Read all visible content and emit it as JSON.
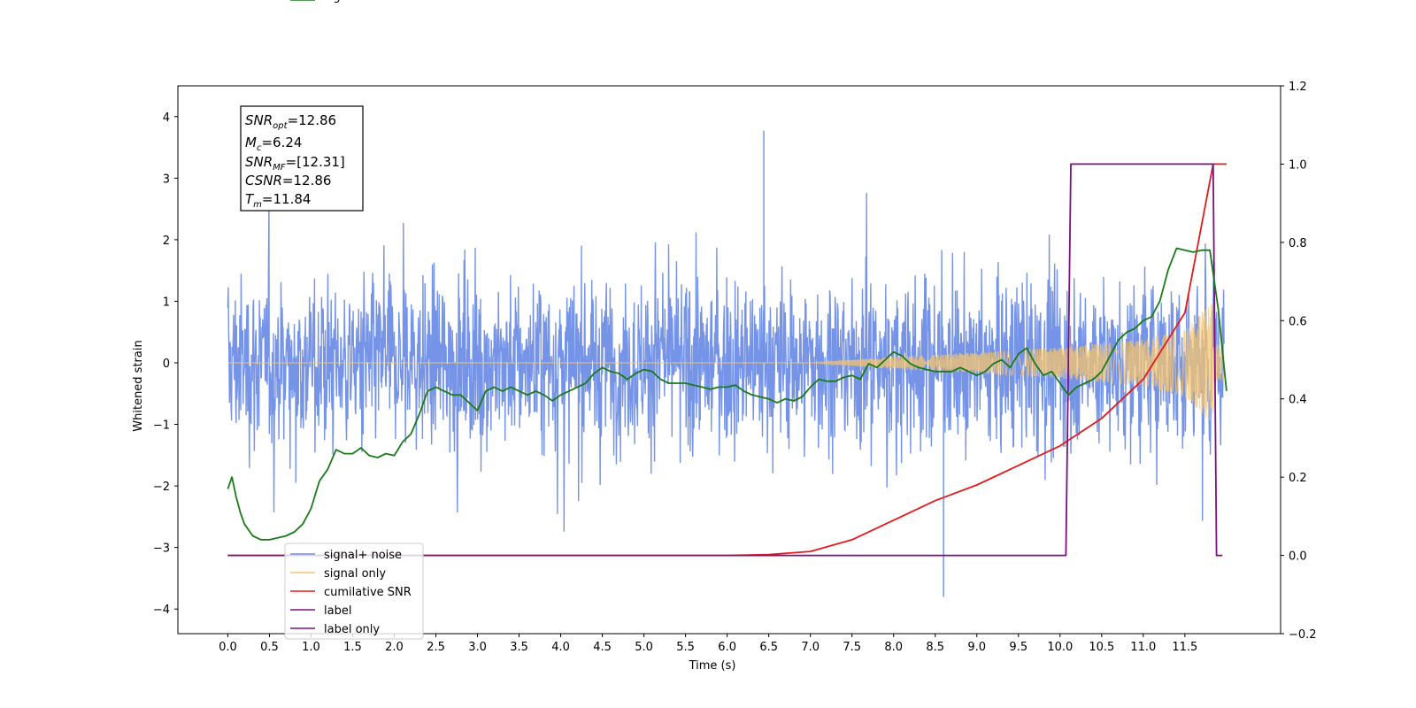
{
  "chart_data": {
    "type": "line",
    "xlabel": "Time (s)",
    "ylabel": "Whitened strain",
    "xlim": [
      -0.6,
      12.65
    ],
    "ylim": [
      -4.4,
      4.5
    ],
    "y2lim": [
      -0.2,
      1.2
    ],
    "x_ticks": [
      "0.0",
      "0.5",
      "1.0",
      "1.5",
      "2.0",
      "2.5",
      "3.0",
      "3.5",
      "4.0",
      "4.5",
      "5.0",
      "5.5",
      "6.0",
      "6.5",
      "7.0",
      "7.5",
      "8.0",
      "8.5",
      "9.0",
      "9.5",
      "10.0",
      "10.5",
      "11.0",
      "11.5"
    ],
    "y_ticks": [
      "−4",
      "−3",
      "−2",
      "−1",
      "0",
      "1",
      "2",
      "3",
      "4"
    ],
    "y2_ticks": [
      "−0.2",
      "0.0",
      "0.2",
      "0.4",
      "0.6",
      "0.8",
      "1.0",
      "1.2"
    ],
    "grid": false,
    "legend_position": "lower-left",
    "annotation_lines": [
      {
        "pre": "SNR",
        "sub": "opt",
        "post": "=12.86"
      },
      {
        "pre": "M",
        "sub": "c",
        "post": "=6.24"
      },
      {
        "pre": "SNR",
        "sub": "MF",
        "post": "=[12.31]"
      },
      {
        "pre": "CSNR",
        "sub": "",
        "post": "=12.86"
      },
      {
        "pre": "T",
        "sub": "m",
        "post": "=11.84"
      }
    ],
    "series": [
      {
        "name": "signal+ noise",
        "color": "#6f8ee6",
        "axis": "left",
        "style": "noise",
        "noise_range": [
          -2.3,
          2.4
        ],
        "extremes": [
          3.77,
          -3.8
        ]
      },
      {
        "name": "signal only",
        "color": "#f5c46e",
        "axis": "left",
        "style": "chirp",
        "amplitude_envelope": {
          "x": [
            7.0,
            8.0,
            9.0,
            10.0,
            11.0,
            11.5,
            11.84
          ],
          "y": [
            0.0,
            0.1,
            0.17,
            0.25,
            0.38,
            0.55,
            1.0
          ]
        }
      },
      {
        "name": "cumilative SNR",
        "color": "#e41a1c",
        "axis": "right",
        "x": [
          0.0,
          6.0,
          6.5,
          7.0,
          7.5,
          8.0,
          8.5,
          9.0,
          9.5,
          10.0,
          10.5,
          11.0,
          11.5,
          11.84,
          11.85,
          12.0
        ],
        "y": [
          0.0,
          0.0,
          0.002,
          0.01,
          0.04,
          0.09,
          0.14,
          0.18,
          0.23,
          0.28,
          0.35,
          0.45,
          0.62,
          1.0,
          1.0,
          1.0
        ]
      },
      {
        "name": "label",
        "color": "#7b1080",
        "axis": "right",
        "x": [
          0.0,
          10.07,
          10.13,
          11.84,
          11.88,
          11.95
        ],
        "y": [
          0.0,
          0.0,
          1.0,
          1.0,
          0.0,
          0.0
        ]
      },
      {
        "name": "label only",
        "color": "#7b1080",
        "axis": "right",
        "hidden": true,
        "x": [],
        "y": []
      },
      {
        "name": "signal statistics",
        "color": "#1a7a1a",
        "axis": "right",
        "x": [
          0.0,
          0.05,
          0.1,
          0.15,
          0.2,
          0.3,
          0.4,
          0.5,
          0.6,
          0.7,
          0.8,
          0.9,
          1.0,
          1.1,
          1.2,
          1.3,
          1.4,
          1.5,
          1.6,
          1.7,
          1.8,
          1.9,
          2.0,
          2.1,
          2.2,
          2.3,
          2.4,
          2.5,
          2.6,
          2.7,
          2.8,
          2.9,
          3.0,
          3.1,
          3.2,
          3.3,
          3.4,
          3.5,
          3.6,
          3.7,
          3.8,
          3.9,
          4.0,
          4.1,
          4.2,
          4.3,
          4.4,
          4.5,
          4.6,
          4.7,
          4.8,
          4.9,
          5.0,
          5.1,
          5.2,
          5.3,
          5.4,
          5.5,
          5.6,
          5.7,
          5.8,
          5.9,
          6.0,
          6.1,
          6.2,
          6.3,
          6.4,
          6.5,
          6.6,
          6.7,
          6.8,
          6.9,
          7.0,
          7.1,
          7.2,
          7.3,
          7.4,
          7.5,
          7.6,
          7.7,
          7.8,
          7.9,
          8.0,
          8.1,
          8.2,
          8.3,
          8.4,
          8.5,
          8.6,
          8.7,
          8.8,
          8.9,
          9.0,
          9.1,
          9.2,
          9.3,
          9.4,
          9.5,
          9.6,
          9.7,
          9.8,
          9.9,
          10.0,
          10.1,
          10.2,
          10.3,
          10.4,
          10.5,
          10.6,
          10.7,
          10.8,
          10.9,
          11.0,
          11.1,
          11.2,
          11.3,
          11.4,
          11.5,
          11.6,
          11.7,
          11.8,
          11.9,
          12.0
        ],
        "y": [
          0.17,
          0.2,
          0.15,
          0.11,
          0.08,
          0.05,
          0.04,
          0.04,
          0.045,
          0.05,
          0.06,
          0.08,
          0.12,
          0.19,
          0.22,
          0.27,
          0.26,
          0.26,
          0.275,
          0.255,
          0.25,
          0.26,
          0.255,
          0.29,
          0.31,
          0.36,
          0.42,
          0.43,
          0.42,
          0.41,
          0.41,
          0.39,
          0.37,
          0.42,
          0.43,
          0.42,
          0.43,
          0.42,
          0.41,
          0.42,
          0.41,
          0.395,
          0.41,
          0.42,
          0.43,
          0.44,
          0.465,
          0.48,
          0.47,
          0.465,
          0.45,
          0.465,
          0.475,
          0.47,
          0.45,
          0.44,
          0.44,
          0.44,
          0.435,
          0.43,
          0.425,
          0.43,
          0.43,
          0.435,
          0.42,
          0.41,
          0.405,
          0.4,
          0.39,
          0.4,
          0.395,
          0.405,
          0.43,
          0.45,
          0.445,
          0.445,
          0.455,
          0.46,
          0.45,
          0.49,
          0.48,
          0.5,
          0.52,
          0.51,
          0.49,
          0.48,
          0.475,
          0.47,
          0.47,
          0.47,
          0.48,
          0.47,
          0.46,
          0.47,
          0.49,
          0.5,
          0.48,
          0.515,
          0.53,
          0.49,
          0.46,
          0.47,
          0.44,
          0.41,
          0.43,
          0.44,
          0.45,
          0.47,
          0.51,
          0.55,
          0.57,
          0.58,
          0.6,
          0.61,
          0.65,
          0.73,
          0.785,
          0.78,
          0.775,
          0.78,
          0.78,
          0.63,
          0.42
        ]
      }
    ]
  }
}
